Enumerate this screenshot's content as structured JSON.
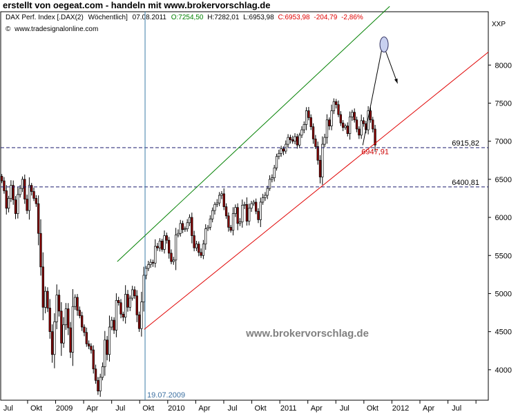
{
  "page_title": "erstellt von oegeat.com - handeln mit www.brokervorschlag.de",
  "chart_data": {
    "type": "candlestick",
    "header": {
      "name": "DAX Perf. Index [.DAX(2)",
      "interval": "Wöchentlich]",
      "date": "07.08.2011",
      "open": "O:7254,50",
      "high": "H:7282,01",
      "low": "L:6953,98",
      "close": "C:6953,98",
      "change": "-204,79",
      "change_pct": "-2,86%",
      "source": "www.tradesignalonline.com"
    },
    "axis_label": "XXP",
    "watermark": "www.brokervorschlag.de",
    "y_ticks": [
      4000,
      4500,
      5000,
      5500,
      6000,
      6500,
      7000,
      7500,
      8000
    ],
    "y_tick_labels": [
      "4000",
      "4500",
      "5000",
      "5500",
      "6000",
      "6500",
      "7000",
      "7500",
      "8000"
    ],
    "ylim": [
      3600,
      8700
    ],
    "x_tick_labels": [
      "Jul",
      "Okt",
      "2009",
      "Apr",
      "Jul",
      "Okt",
      "2010",
      "Apr",
      "Jul",
      "Okt",
      "2011",
      "Apr",
      "Jul",
      "Okt",
      "2012",
      "Apr",
      "Jul"
    ],
    "x_ticks": [
      2008.5,
      2008.75,
      2009.0,
      2009.25,
      2009.5,
      2009.75,
      2010.0,
      2010.25,
      2010.5,
      2010.75,
      2011.0,
      2011.25,
      2011.5,
      2011.75,
      2012.0,
      2012.25,
      2012.5
    ],
    "xlim": [
      2008.26,
      2012.61
    ],
    "horizontal_levels": [
      {
        "value": 6915.82,
        "label": "6915,82"
      },
      {
        "value": 6400.81,
        "label": "6400,81"
      }
    ],
    "vertical_marker": {
      "date": 2009.548,
      "label": "19.07.2009"
    },
    "trend_lines": [
      {
        "name": "upper",
        "color": "#008000",
        "from": [
          2009.3,
          5420
        ],
        "to": [
          2011.73,
          8770
        ]
      },
      {
        "name": "lower",
        "color": "#e00000",
        "from": [
          2009.54,
          4530
        ],
        "to": [
          2012.61,
          8170
        ]
      }
    ],
    "low_label": {
      "date": 2011.49,
      "value": 6947.91,
      "label": "6947,91"
    },
    "projection": {
      "points": [
        [
          2011.49,
          6947.91
        ],
        [
          2011.67,
          8280
        ],
        [
          2011.8,
          7760
        ]
      ],
      "ellipse": {
        "date": 2011.68,
        "value": 8270
      }
    },
    "weekly_closes": [
      6480,
      6350,
      6120,
      6250,
      6420,
      6230,
      6050,
      6300,
      6380,
      6500,
      6240,
      6090,
      6420,
      6340,
      6250,
      6180,
      5790,
      5350,
      4820,
      5030,
      4810,
      4500,
      4200,
      4630,
      4980,
      4770,
      4350,
      4590,
      4800,
      4550,
      4230,
      4830,
      4950,
      4780,
      4710,
      4560,
      4490,
      4340,
      4310,
      4260,
      4010,
      3860,
      3720,
      3900,
      4040,
      4390,
      4200,
      4560,
      4650,
      4520,
      4910,
      4880,
      4730,
      4690,
      4990,
      4820,
      4940,
      5050,
      4970,
      4720,
      4540,
      4890,
      5240,
      5330,
      5380,
      5410,
      5400,
      5620,
      5600,
      5690,
      5580,
      5760,
      5700,
      5530,
      5420,
      5440,
      5770,
      5790,
      5920,
      5840,
      5850,
      5930,
      6000,
      5760,
      5600,
      5650,
      5540,
      5500,
      5650,
      5850,
      5870,
      5980,
      6090,
      6170,
      6190,
      6290,
      6310,
      6140,
      6020,
      5870,
      5830,
      6050,
      6130,
      5920,
      5940,
      6160,
      6170,
      5950,
      6120,
      6180,
      6200,
      6080,
      5970,
      6200,
      6260,
      6290,
      6380,
      6500,
      6520,
      6650,
      6800,
      6840,
      6900,
      6870,
      6960,
      7050,
      7020,
      7000,
      7060,
      6950,
      7080,
      7150,
      7220,
      7400,
      7310,
      7190,
      7030,
      6930,
      6750,
      6530,
      6960,
      7050,
      7280,
      7200,
      7400,
      7520,
      7480,
      7350,
      7240,
      7180,
      7200,
      7100,
      7320,
      7380,
      7280,
      7160,
      7080,
      7270,
      7230,
      7150,
      7400,
      7280,
      7160,
      6950
    ]
  }
}
